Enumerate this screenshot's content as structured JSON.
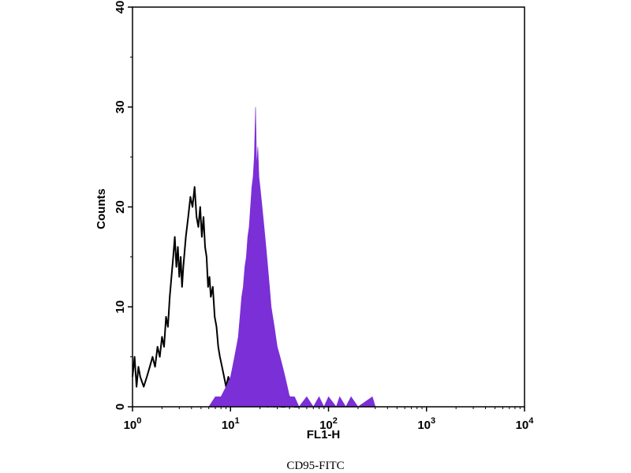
{
  "chart_data": {
    "type": "area",
    "xlabel": "FL1-H",
    "ylabel": "Counts",
    "x_scale": "log",
    "xlim": [
      1,
      10000
    ],
    "ylim": [
      0,
      40
    ],
    "x_ticks": [
      {
        "base": "10",
        "exp": "0",
        "value": 1
      },
      {
        "base": "10",
        "exp": "1",
        "value": 10
      },
      {
        "base": "10",
        "exp": "2",
        "value": 100
      },
      {
        "base": "10",
        "exp": "3",
        "value": 1000
      },
      {
        "base": "10",
        "exp": "4",
        "value": 10000
      }
    ],
    "y_ticks": [
      "0",
      "10",
      "20",
      "30",
      "40"
    ],
    "grid": false,
    "series": [
      {
        "kind": "outline",
        "color": "#000000",
        "points": [
          [
            1.0,
            3
          ],
          [
            1.05,
            5
          ],
          [
            1.1,
            2
          ],
          [
            1.15,
            4
          ],
          [
            1.2,
            3
          ],
          [
            1.3,
            2
          ],
          [
            1.4,
            3
          ],
          [
            1.5,
            4
          ],
          [
            1.6,
            5
          ],
          [
            1.7,
            4
          ],
          [
            1.8,
            6
          ],
          [
            1.9,
            5
          ],
          [
            2.0,
            7
          ],
          [
            2.1,
            6
          ],
          [
            2.2,
            9
          ],
          [
            2.3,
            8
          ],
          [
            2.4,
            11
          ],
          [
            2.5,
            13
          ],
          [
            2.6,
            15
          ],
          [
            2.7,
            17
          ],
          [
            2.8,
            14
          ],
          [
            2.9,
            16
          ],
          [
            3.0,
            13
          ],
          [
            3.1,
            15
          ],
          [
            3.2,
            12
          ],
          [
            3.3,
            14
          ],
          [
            3.5,
            17
          ],
          [
            3.7,
            19
          ],
          [
            3.9,
            21
          ],
          [
            4.1,
            20
          ],
          [
            4.3,
            22
          ],
          [
            4.5,
            19
          ],
          [
            4.7,
            18
          ],
          [
            4.9,
            20
          ],
          [
            5.1,
            17
          ],
          [
            5.3,
            19
          ],
          [
            5.5,
            16
          ],
          [
            5.7,
            15
          ],
          [
            5.9,
            12
          ],
          [
            6.1,
            13
          ],
          [
            6.3,
            11
          ],
          [
            6.6,
            12
          ],
          [
            6.9,
            9
          ],
          [
            7.2,
            8
          ],
          [
            7.5,
            6
          ],
          [
            7.8,
            5
          ],
          [
            8.2,
            4
          ],
          [
            8.6,
            3
          ],
          [
            9.0,
            2
          ],
          [
            9.5,
            3
          ],
          [
            10.0,
            2
          ],
          [
            10.5,
            1
          ],
          [
            11.0,
            2
          ],
          [
            11.5,
            1
          ],
          [
            12.0,
            3
          ],
          [
            12.5,
            2
          ],
          [
            13.0,
            4
          ],
          [
            13.5,
            3
          ],
          [
            14.0,
            5
          ],
          [
            14.5,
            3
          ],
          [
            15.0,
            2
          ],
          [
            16.0,
            3
          ],
          [
            17.0,
            1
          ],
          [
            18.0,
            2
          ],
          [
            19.0,
            1
          ],
          [
            20.0,
            2
          ],
          [
            22.0,
            1
          ],
          [
            24.0,
            0
          ],
          [
            26.0,
            1
          ],
          [
            28.0,
            0
          ],
          [
            30.0,
            1
          ],
          [
            33.0,
            0
          ],
          [
            36.0,
            0
          ],
          [
            40.0,
            1
          ],
          [
            45.0,
            0
          ],
          [
            50.0,
            0
          ]
        ]
      },
      {
        "kind": "filled",
        "color": "#7b2fd6",
        "points": [
          [
            6.0,
            0
          ],
          [
            7.0,
            1
          ],
          [
            8.0,
            1
          ],
          [
            9.0,
            2
          ],
          [
            10.0,
            3
          ],
          [
            10.5,
            4
          ],
          [
            11.0,
            5
          ],
          [
            11.5,
            6
          ],
          [
            12.0,
            7
          ],
          [
            12.5,
            9
          ],
          [
            13.0,
            11
          ],
          [
            13.5,
            12
          ],
          [
            14.0,
            14
          ],
          [
            14.5,
            15
          ],
          [
            15.0,
            17
          ],
          [
            15.5,
            18
          ],
          [
            16.0,
            20
          ],
          [
            16.5,
            22
          ],
          [
            17.0,
            23
          ],
          [
            17.5,
            25
          ],
          [
            18.0,
            30
          ],
          [
            18.5,
            24
          ],
          [
            19.0,
            26
          ],
          [
            19.5,
            23
          ],
          [
            20.0,
            22
          ],
          [
            21.0,
            20
          ],
          [
            22.0,
            18
          ],
          [
            23.0,
            16
          ],
          [
            24.0,
            14
          ],
          [
            25.0,
            12
          ],
          [
            26.0,
            10
          ],
          [
            27.0,
            9
          ],
          [
            28.0,
            8
          ],
          [
            30.0,
            6
          ],
          [
            32.0,
            5
          ],
          [
            34.0,
            4
          ],
          [
            36.0,
            3
          ],
          [
            38.0,
            2
          ],
          [
            40.0,
            1
          ],
          [
            45.0,
            1
          ],
          [
            50.0,
            0
          ],
          [
            60.0,
            1
          ],
          [
            70.0,
            0
          ],
          [
            80.0,
            1
          ],
          [
            90.0,
            0
          ],
          [
            100.0,
            1
          ],
          [
            120.0,
            0
          ],
          [
            130.0,
            1
          ],
          [
            150.0,
            0
          ],
          [
            170.0,
            1
          ],
          [
            200.0,
            0
          ],
          [
            280.0,
            1
          ],
          [
            300.0,
            0
          ]
        ]
      }
    ]
  },
  "caption": "CD95-FITC"
}
